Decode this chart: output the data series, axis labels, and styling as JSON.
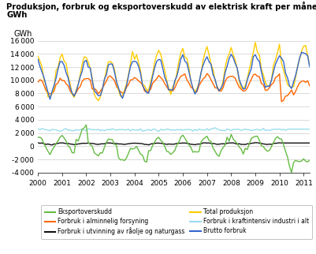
{
  "title_line1": "Produksjon, forbruk og eksportoverskudd av elektrisk kraft per måned.",
  "title_line2": "GWh",
  "ylabel": "GWh",
  "ylim": [
    -4000,
    16000
  ],
  "yticks": [
    -4000,
    -2000,
    0,
    2000,
    4000,
    6000,
    8000,
    10000,
    12000,
    14000,
    16000
  ],
  "xticks": [
    2000,
    2001,
    2002,
    2003,
    2004,
    2005,
    2006,
    2007,
    2008,
    2009,
    2010,
    2011
  ],
  "xmin": 2000.0,
  "xmax": 2011.25,
  "colors": {
    "eksportoverskudd": "#66bb44",
    "forbruk_alm": "#ff6600",
    "forbruk_utvinning": "#111111",
    "total_produksjon": "#ffcc00",
    "forbruk_kraftintensiv": "#99ddee",
    "brutto_forbruk": "#3366cc"
  }
}
